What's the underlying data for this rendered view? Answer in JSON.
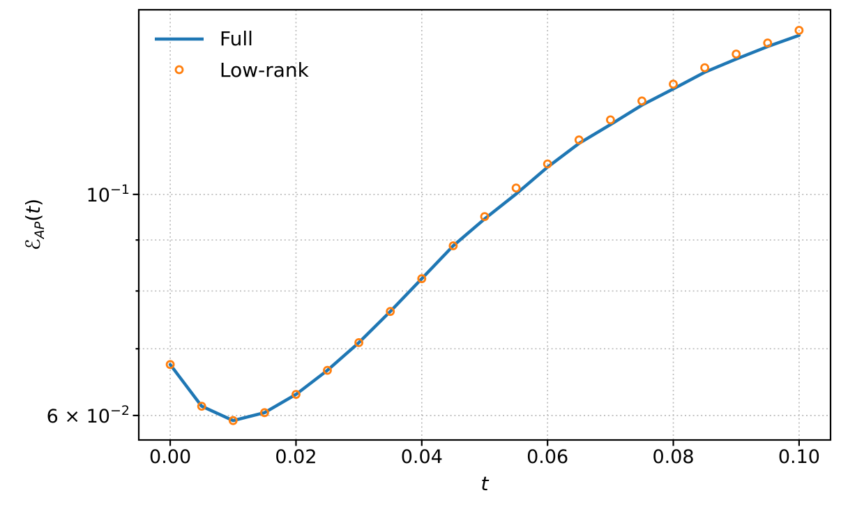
{
  "figure": {
    "background": "#ffffff",
    "spine_color": "#000000",
    "text_color": "#000000"
  },
  "chart_data": {
    "type": "line",
    "title": "",
    "xlabel": "t",
    "ylabel": "ℰ_AP(t)",
    "ylabel_parts": {
      "e": "ℰ",
      "sub": "AP",
      "open": "(",
      "var": "t",
      "close": ")"
    },
    "xlim": [
      -0.005,
      0.105
    ],
    "ylim": [
      0.0567,
      0.1532
    ],
    "yscale": "log",
    "x": [
      0.0,
      0.005,
      0.01,
      0.015,
      0.02,
      0.025,
      0.03,
      0.035,
      0.04,
      0.045,
      0.05,
      0.055,
      0.06,
      0.065,
      0.07,
      0.075,
      0.08,
      0.085,
      0.09,
      0.095,
      0.1
    ],
    "series": [
      {
        "name": "Full",
        "kind": "line",
        "color": "#1f77b4",
        "values": [
          0.0675,
          0.0613,
          0.0593,
          0.0604,
          0.063,
          0.0666,
          0.071,
          0.0763,
          0.0823,
          0.0888,
          0.0945,
          0.1001,
          0.1065,
          0.1125,
          0.1175,
          0.1229,
          0.1276,
          0.1326,
          0.1367,
          0.1407,
          0.1444
        ]
      },
      {
        "name": "Low-rank",
        "kind": "scatter-open-circle",
        "color": "#ff7f0e",
        "values": [
          0.0675,
          0.0613,
          0.0593,
          0.0604,
          0.063,
          0.0666,
          0.071,
          0.0763,
          0.0823,
          0.0888,
          0.095,
          0.1015,
          0.1073,
          0.1134,
          0.1188,
          0.1241,
          0.129,
          0.134,
          0.1383,
          0.1419,
          0.1461
        ]
      }
    ],
    "xticks": {
      "values": [
        0.0,
        0.02,
        0.04,
        0.06,
        0.08,
        0.1
      ],
      "labels": [
        "0.00",
        "0.02",
        "0.04",
        "0.06",
        "0.08",
        "0.10"
      ]
    },
    "yticks": {
      "labeled": [
        {
          "value": 0.1,
          "prefix": "10",
          "exp": "−1"
        },
        {
          "value": 0.06,
          "prefix": "6 × 10",
          "exp": "−2"
        }
      ],
      "minor_unlabeled": [
        0.07,
        0.08,
        0.09
      ]
    },
    "grid": {
      "on": true,
      "x_values": [
        0.0,
        0.02,
        0.04,
        0.06,
        0.08,
        0.1
      ],
      "y_values": [
        0.06,
        0.07,
        0.08,
        0.09,
        0.1
      ],
      "style": "dotted",
      "color": "#b9b9b9"
    },
    "legend": {
      "position": "upper-left",
      "frame": false,
      "items": [
        "Full",
        "Low-rank"
      ]
    }
  }
}
